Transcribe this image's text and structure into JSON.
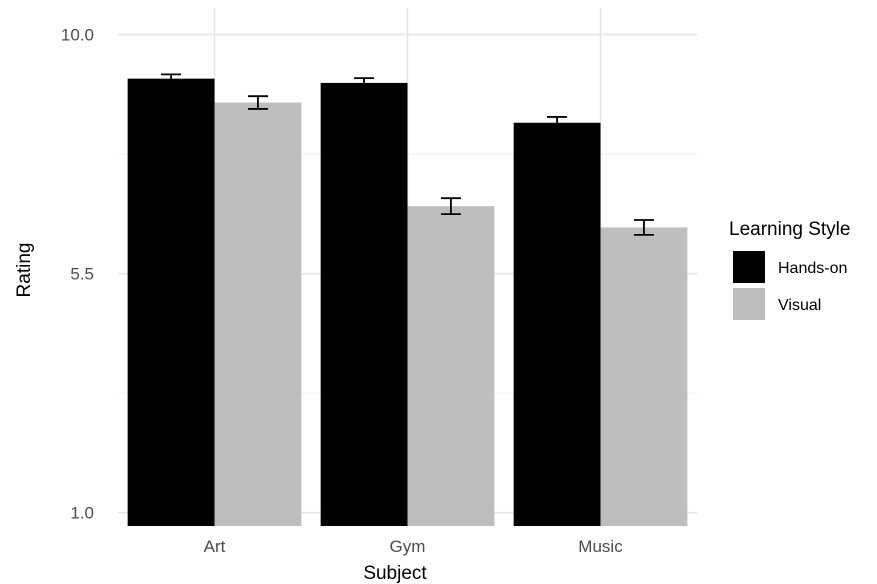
{
  "chart_data": {
    "type": "bar",
    "xlabel": "Subject",
    "ylabel": "Rating",
    "categories": [
      "Art",
      "Gym",
      "Music"
    ],
    "yticks": [
      1.0,
      5.5,
      10.0
    ],
    "ytick_labels": [
      "1.0",
      "5.5",
      "10.0"
    ],
    "ylim": [
      0.75,
      10.5
    ],
    "grid": true,
    "legend": {
      "title": "Learning Style",
      "placement": "right"
    },
    "series": [
      {
        "name": "Hands-on",
        "color": "#000000",
        "values": [
          9.17,
          9.09,
          8.34
        ],
        "errors": [
          0.08,
          0.09,
          0.11
        ]
      },
      {
        "name": "Visual",
        "color": "#bebebe",
        "values": [
          8.72,
          6.77,
          6.37
        ],
        "errors": [
          0.12,
          0.15,
          0.14
        ]
      }
    ]
  }
}
